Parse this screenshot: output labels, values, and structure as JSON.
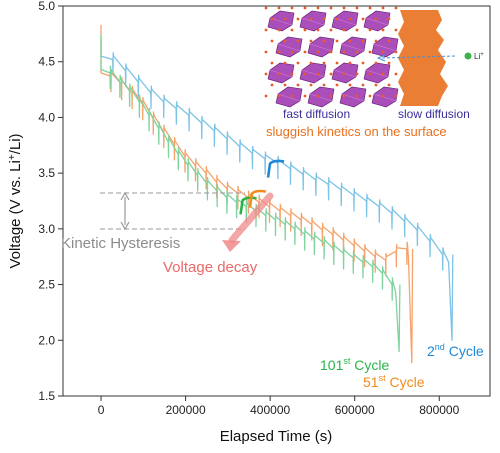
{
  "chart_data": {
    "type": "line",
    "xlabel": "Elapsed Time (s)",
    "ylabel_parts": [
      "Voltage (V vs. Li",
      "+",
      "/Li)"
    ],
    "xlim": [
      -90000,
      920000
    ],
    "ylim": [
      1.5,
      5.0
    ],
    "xticks": [
      0,
      200000,
      400000,
      600000,
      800000
    ],
    "xtick_labels": [
      "0",
      "200000",
      "400000",
      "600000",
      "800000"
    ],
    "yticks": [
      1.5,
      2.0,
      2.5,
      3.0,
      3.5,
      4.0,
      4.5,
      5.0
    ],
    "ytick_labels": [
      "1.5",
      "2.0",
      "2.5",
      "3.0",
      "3.5",
      "4.0",
      "4.5",
      "5.0"
    ],
    "series": [
      {
        "name_parts": [
          "2",
          "nd",
          " Cycle"
        ],
        "color": "#7cc3e6",
        "start_v": 4.7,
        "plateau_v": 4.5,
        "step_t": 30000,
        "steps": [
          [
            30000,
            4.5
          ],
          [
            60000,
            4.4
          ],
          [
            90000,
            4.3
          ],
          [
            120000,
            4.2
          ],
          [
            150000,
            4.12
          ],
          [
            180000,
            4.06
          ],
          [
            210000,
            4.0
          ],
          [
            240000,
            3.93
          ],
          [
            270000,
            3.86
          ],
          [
            300000,
            3.79
          ],
          [
            330000,
            3.72
          ],
          [
            360000,
            3.66
          ],
          [
            390000,
            3.61
          ],
          [
            420000,
            3.57
          ],
          [
            450000,
            3.52
          ],
          [
            480000,
            3.47
          ],
          [
            510000,
            3.42
          ],
          [
            540000,
            3.38
          ],
          [
            570000,
            3.33
          ],
          [
            600000,
            3.28
          ],
          [
            630000,
            3.23
          ],
          [
            660000,
            3.18
          ],
          [
            690000,
            3.12
          ],
          [
            720000,
            3.05
          ],
          [
            750000,
            2.97
          ],
          [
            780000,
            2.87
          ],
          [
            810000,
            2.75
          ]
        ],
        "end_t": 830000,
        "end_v": 2.0
      },
      {
        "name_parts": [
          "51",
          "st",
          " Cycle"
        ],
        "color": "#f5a36b",
        "start_v": 4.83,
        "plateau_v": 4.35,
        "step_t": 25000,
        "steps": [
          [
            25000,
            4.35
          ],
          [
            50000,
            4.28
          ],
          [
            75000,
            4.2
          ],
          [
            100000,
            4.1
          ],
          [
            125000,
            3.97
          ],
          [
            150000,
            3.85
          ],
          [
            175000,
            3.74
          ],
          [
            200000,
            3.63
          ],
          [
            225000,
            3.55
          ],
          [
            250000,
            3.48
          ],
          [
            275000,
            3.4
          ],
          [
            300000,
            3.34
          ],
          [
            325000,
            3.3
          ],
          [
            350000,
            3.26
          ],
          [
            375000,
            3.22
          ],
          [
            400000,
            3.18
          ],
          [
            425000,
            3.14
          ],
          [
            450000,
            3.1
          ],
          [
            475000,
            3.06
          ],
          [
            500000,
            3.02
          ],
          [
            525000,
            2.97
          ],
          [
            550000,
            2.93
          ],
          [
            575000,
            2.88
          ],
          [
            600000,
            2.83
          ],
          [
            625000,
            2.78
          ],
          [
            650000,
            2.73
          ],
          [
            675000,
            2.7
          ],
          [
            700000,
            2.78
          ],
          [
            725000,
            2.8
          ]
        ],
        "end_t": 735000,
        "end_v": 1.8
      },
      {
        "name_parts": [
          "101",
          "st",
          " Cycle"
        ],
        "color": "#7fd39e",
        "start_v": 4.75,
        "plateau_v": 4.38,
        "step_t": 23000,
        "steps": [
          [
            23000,
            4.38
          ],
          [
            46000,
            4.3
          ],
          [
            69000,
            4.22
          ],
          [
            92000,
            4.12
          ],
          [
            115000,
            4.0
          ],
          [
            138000,
            3.88
          ],
          [
            161000,
            3.76
          ],
          [
            184000,
            3.65
          ],
          [
            207000,
            3.55
          ],
          [
            230000,
            3.46
          ],
          [
            253000,
            3.38
          ],
          [
            276000,
            3.32
          ],
          [
            299000,
            3.26
          ],
          [
            322000,
            3.22
          ],
          [
            345000,
            3.18
          ],
          [
            368000,
            3.14
          ],
          [
            391000,
            3.1
          ],
          [
            414000,
            3.06
          ],
          [
            437000,
            3.02
          ],
          [
            460000,
            2.98
          ],
          [
            483000,
            2.93
          ],
          [
            506000,
            2.89
          ],
          [
            529000,
            2.85
          ],
          [
            552000,
            2.8
          ],
          [
            575000,
            2.76
          ],
          [
            598000,
            2.72
          ],
          [
            621000,
            2.68
          ],
          [
            644000,
            2.64
          ],
          [
            667000,
            2.58
          ],
          [
            690000,
            2.48
          ]
        ],
        "end_t": 705000,
        "end_v": 1.9
      }
    ],
    "annotations": {
      "kinetic_hysteresis": "Kinetic Hysteresis",
      "voltage_decay": "Voltage decay",
      "fast_diffusion": "fast diffusion",
      "slow_diffusion": "slow diffusion",
      "li_label": "Li",
      "li_sup": "+",
      "sluggish": "sluggish kinetics on the surface"
    },
    "colors": {
      "second": "#7cc3e6",
      "fifty_first": "#f5a36b",
      "hundred_first": "#7fd39e",
      "second_accent": "#1e88d6",
      "fifty_first_accent": "#f28a1e",
      "hundred_first_accent": "#2bb34a",
      "decay_arrow": "#ef8a8a",
      "hysteresis": "#9a9a9a",
      "octahedra": "#9b2fae",
      "surface": "#e8701e",
      "atoms": "#e85a2a",
      "li_dot": "#3db34a"
    },
    "grid": false,
    "legend": "inline labels at curve ends"
  }
}
